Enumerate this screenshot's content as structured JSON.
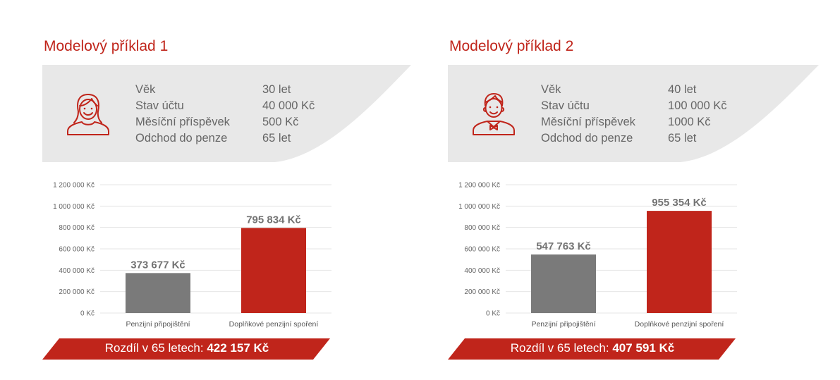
{
  "colors": {
    "accent": "#c0251b",
    "bar_pension": "#7a7a7a",
    "bar_supplementary": "#c0251b",
    "info_bg": "#e8e8e8"
  },
  "examples": [
    {
      "title": "Modelový příklad 1",
      "avatar_icon": "woman-icon",
      "info": [
        {
          "label": "Věk",
          "value": "30 let"
        },
        {
          "label": "Stav účtu",
          "value": "40 000 Kč"
        },
        {
          "label": "Měsíční příspěvek",
          "value": "500 Kč"
        },
        {
          "label": "Odchod do penze",
          "value": "65 let"
        }
      ],
      "difference": {
        "label": "Rozdíl v 65 letech:",
        "value": "422 157 Kč"
      }
    },
    {
      "title": "Modelový příklad 2",
      "avatar_icon": "man-icon",
      "info": [
        {
          "label": "Věk",
          "value": "40 let"
        },
        {
          "label": "Stav účtu",
          "value": "100 000 Kč"
        },
        {
          "label": "Měsíční příspěvek",
          "value": "1000 Kč"
        },
        {
          "label": "Odchod do penze",
          "value": "65 let"
        }
      ],
      "difference": {
        "label": "Rozdíl v 65 letech:",
        "value": "407 591 Kč"
      }
    }
  ],
  "chart_data": [
    {
      "type": "bar",
      "categories": [
        "Penzijní připojištění",
        "Doplňkové penzijní spoření"
      ],
      "values": [
        373677,
        795834
      ],
      "value_labels": [
        "373 677 Kč",
        "795 834 Kč"
      ],
      "ylim": [
        0,
        1200000
      ],
      "yticks": [
        0,
        200000,
        400000,
        600000,
        800000,
        1000000,
        1200000
      ],
      "ytick_labels": [
        "0 Kč",
        "200 000 Kč",
        "400 000 Kč",
        "600 000 Kč",
        "800 000 Kč",
        "1 000 000 Kč",
        "1 200 000 Kč"
      ],
      "grid": true,
      "legend": "none"
    },
    {
      "type": "bar",
      "categories": [
        "Penzijní připojištění",
        "Doplňkové penzijní spoření"
      ],
      "values": [
        547763,
        955354
      ],
      "value_labels": [
        "547 763 Kč",
        "955 354 Kč"
      ],
      "ylim": [
        0,
        1200000
      ],
      "yticks": [
        0,
        200000,
        400000,
        600000,
        800000,
        1000000,
        1200000
      ],
      "ytick_labels": [
        "0 Kč",
        "200 000 Kč",
        "400 000 Kč",
        "600 000 Kč",
        "800 000 Kč",
        "1 000 000 Kč",
        "1 200 000 Kč"
      ],
      "grid": true,
      "legend": "none"
    }
  ]
}
